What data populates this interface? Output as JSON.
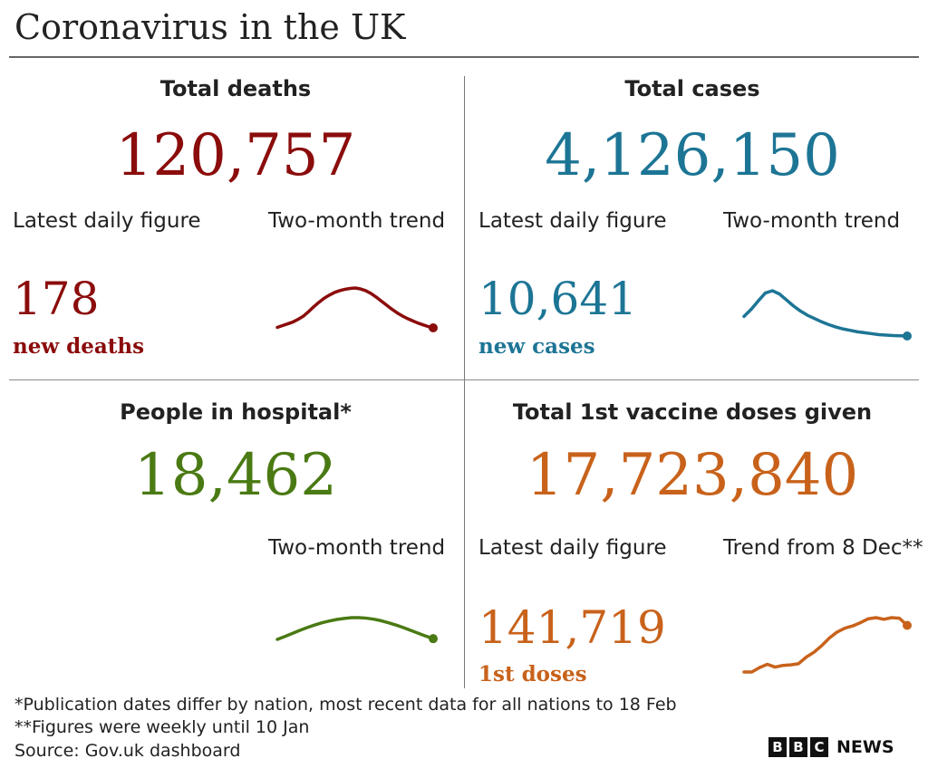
{
  "title": "Coronavirus in the UK",
  "colors": {
    "deaths": "#8b0c0c",
    "cases": "#1d7595",
    "hospital": "#4a7a13",
    "vaccine": "#c8621b"
  },
  "deaths": {
    "heading": "Total deaths",
    "total": "120,757",
    "latest_label": "Latest daily figure",
    "trend_label": "Two-month trend",
    "daily_value": "178",
    "daily_unit": "new deaths"
  },
  "cases": {
    "heading": "Total cases",
    "total": "4,126,150",
    "latest_label": "Latest daily figure",
    "trend_label": "Two-month trend",
    "daily_value": "10,641",
    "daily_unit": "new cases"
  },
  "hospital": {
    "heading": "People in hospital*",
    "total": "18,462",
    "trend_label": "Two-month trend"
  },
  "vaccine": {
    "heading": "Total 1st vaccine doses given",
    "total": "17,723,840",
    "latest_label": "Latest daily figure",
    "trend_label": "Trend from 8 Dec**",
    "daily_value": "141,719",
    "daily_unit": "1st doses"
  },
  "footnotes": {
    "note1": "*Publication dates differ by nation, most recent data for all nations to 18 Feb",
    "note2": "**Figures were weekly until 10 Jan",
    "source": "Source: Gov.uk dashboard"
  },
  "logo": {
    "letters": [
      "B",
      "B",
      "C"
    ],
    "word": "NEWS"
  },
  "chart_data": [
    {
      "type": "line",
      "series": [
        {
          "values": [
            0.1,
            0.14,
            0.18,
            0.22,
            0.28,
            0.35,
            0.45,
            0.56,
            0.66,
            0.75,
            0.82,
            0.88,
            0.92,
            0.95,
            0.97,
            0.98,
            0.96,
            0.92,
            0.86,
            0.78,
            0.69,
            0.6,
            0.51,
            0.43,
            0.36,
            0.3,
            0.25,
            0.2,
            0.16,
            0.12,
            0.09
          ]
        }
      ]
    },
    {
      "type": "line",
      "series": [
        {
          "values": [
            0.45,
            0.6,
            0.78,
            0.95,
            1.0,
            0.93,
            0.8,
            0.67,
            0.56,
            0.47,
            0.4,
            0.33,
            0.27,
            0.22,
            0.18,
            0.15,
            0.12,
            0.1,
            0.08,
            0.06,
            0.05,
            0.04,
            0.035,
            0.03
          ]
        }
      ]
    },
    {
      "type": "line",
      "series": [
        {
          "values": [
            0.15,
            0.26,
            0.38,
            0.5,
            0.61,
            0.71,
            0.8,
            0.87,
            0.93,
            0.97,
            1.0,
            1.0,
            0.98,
            0.94,
            0.88,
            0.8,
            0.71,
            0.61,
            0.5,
            0.39,
            0.28,
            0.18
          ]
        }
      ]
    },
    {
      "type": "line",
      "series": [
        {
          "values": [
            0.0,
            0.0,
            0.08,
            0.14,
            0.09,
            0.12,
            0.13,
            0.15,
            0.27,
            0.36,
            0.48,
            0.62,
            0.73,
            0.8,
            0.84,
            0.9,
            0.97,
            0.99,
            0.96,
            0.99,
            0.98,
            0.85
          ]
        }
      ]
    }
  ]
}
